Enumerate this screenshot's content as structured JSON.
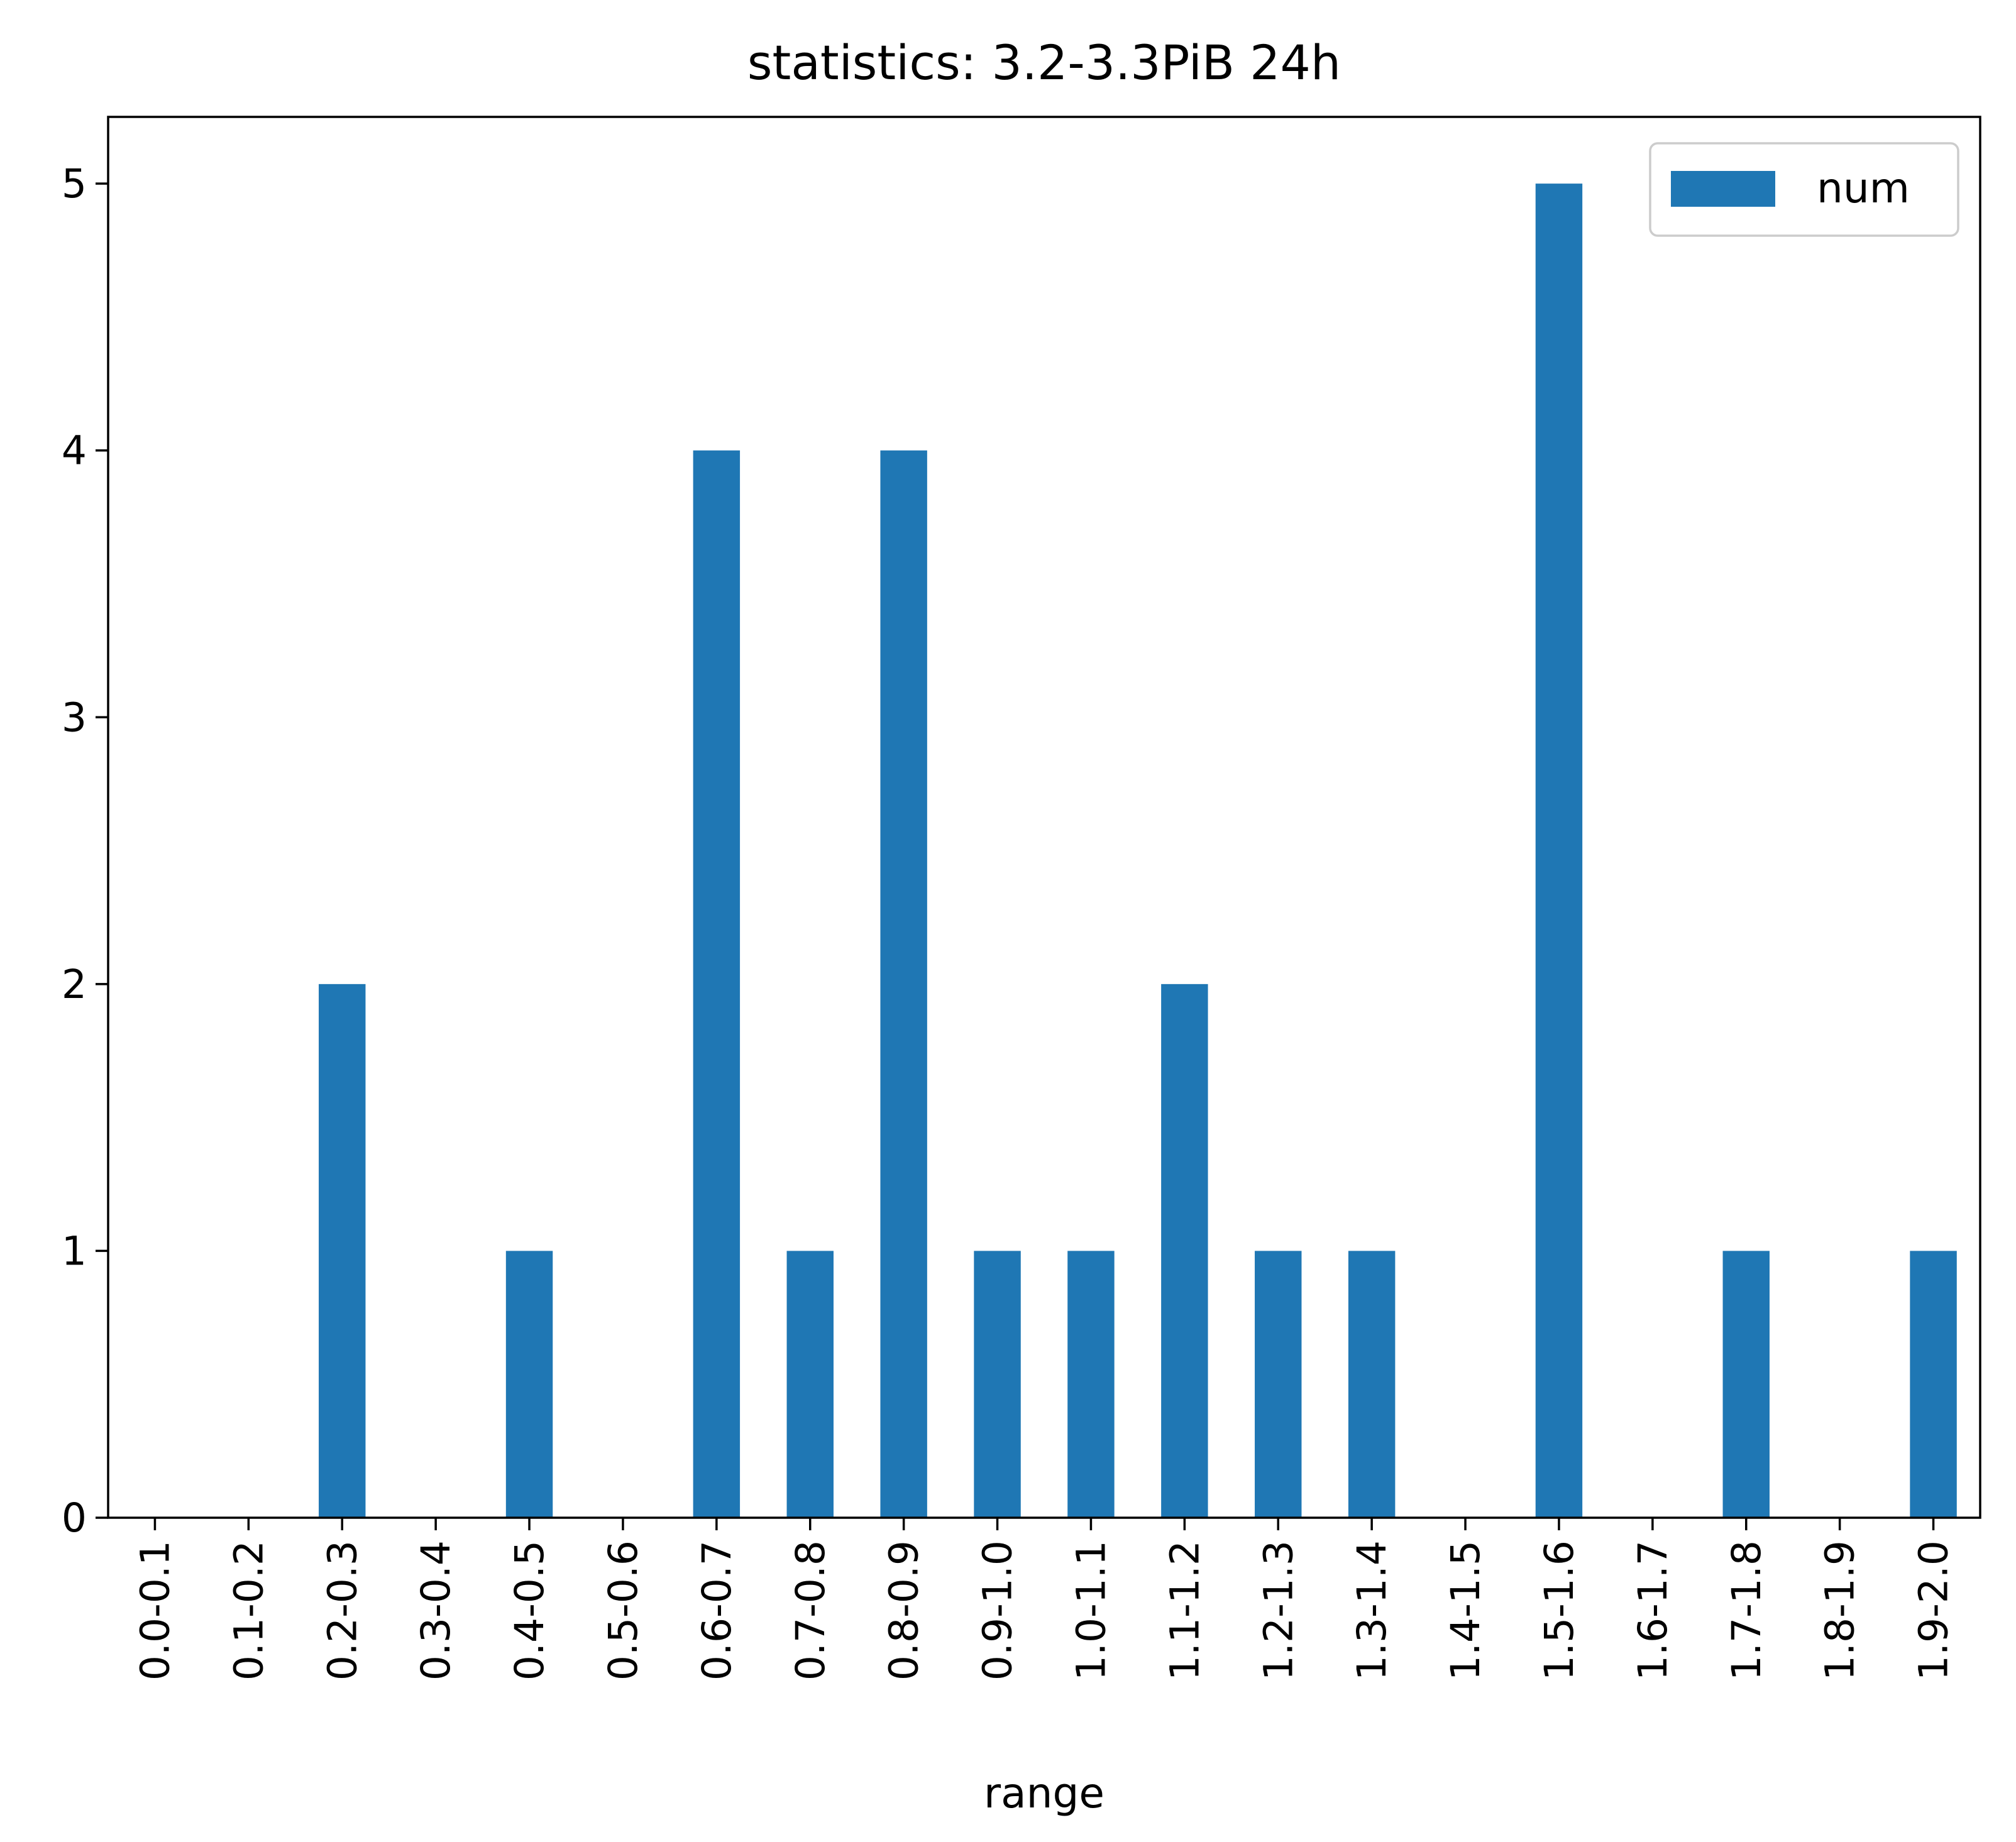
{
  "chart_data": {
    "type": "bar",
    "title": "statistics: 3.2-3.3PiB 24h",
    "xlabel": "range",
    "ylabel": "",
    "categories": [
      "0.0-0.1",
      "0.1-0.2",
      "0.2-0.3",
      "0.3-0.4",
      "0.4-0.5",
      "0.5-0.6",
      "0.6-0.7",
      "0.7-0.8",
      "0.8-0.9",
      "0.9-1.0",
      "1.0-1.1",
      "1.1-1.2",
      "1.2-1.3",
      "1.3-1.4",
      "1.4-1.5",
      "1.5-1.6",
      "1.6-1.7",
      "1.7-1.8",
      "1.8-1.9",
      "1.9-2.0"
    ],
    "series": [
      {
        "name": "num",
        "values": [
          0,
          0,
          2,
          0,
          1,
          0,
          4,
          1,
          4,
          1,
          1,
          2,
          1,
          1,
          0,
          5,
          0,
          1,
          0,
          1
        ],
        "color": "#1f77b4"
      }
    ],
    "yticks": [
      0,
      1,
      2,
      3,
      4,
      5
    ],
    "ylim": [
      0,
      5.25
    ],
    "grid": false,
    "legend_position": "top-right"
  }
}
